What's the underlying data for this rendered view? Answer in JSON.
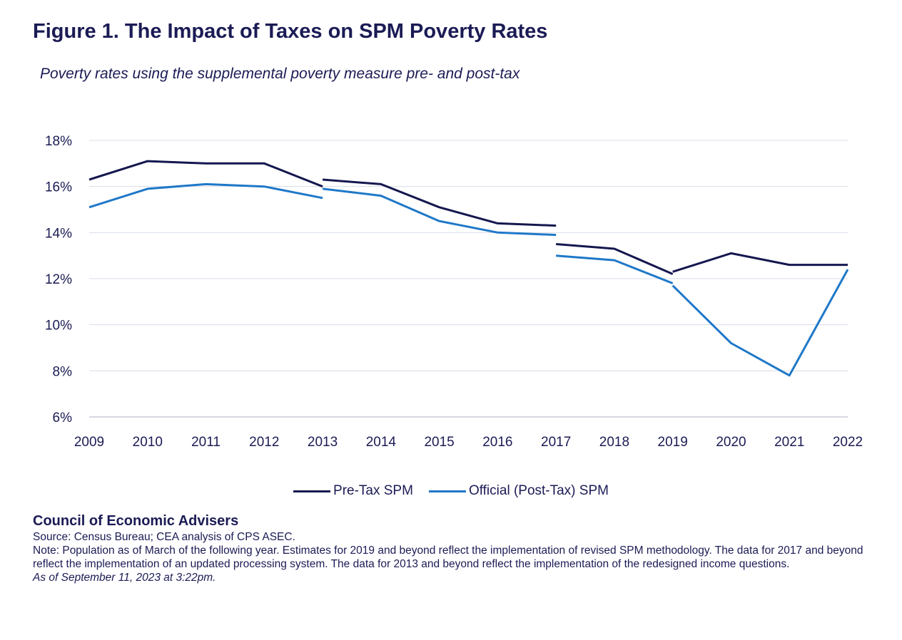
{
  "chart_data": {
    "type": "line",
    "title": "Figure 1. The Impact of Taxes on SPM Poverty Rates",
    "subtitle": "Poverty rates using the supplemental poverty measure pre- and post-tax",
    "xlabel": "",
    "ylabel": "",
    "categories": [
      "2009",
      "2010",
      "2011",
      "2012",
      "2013",
      "2014",
      "2015",
      "2016",
      "2017",
      "2018",
      "2019",
      "2020",
      "2021",
      "2022"
    ],
    "ylim": [
      6,
      18
    ],
    "yticks": [
      6,
      8,
      10,
      12,
      14,
      16,
      18
    ],
    "ytick_labels": [
      "6%",
      "8%",
      "10%",
      "12%",
      "14%",
      "16%",
      "18%"
    ],
    "grid": true,
    "legend_position": "bottom-center",
    "series": [
      {
        "name": "Pre-Tax SPM",
        "color": "#15174f",
        "segments": [
          [
            [
              "2009",
              16.3
            ],
            [
              "2010",
              17.1
            ],
            [
              "2011",
              17.0
            ],
            [
              "2012",
              17.0
            ],
            [
              "2013",
              16.0
            ]
          ],
          [
            [
              "2013",
              16.3
            ],
            [
              "2014",
              16.1
            ],
            [
              "2015",
              15.1
            ],
            [
              "2016",
              14.4
            ],
            [
              "2017",
              14.3
            ]
          ],
          [
            [
              "2017",
              13.5
            ],
            [
              "2018",
              13.3
            ],
            [
              "2019",
              12.2
            ]
          ],
          [
            [
              "2019",
              12.3
            ],
            [
              "2020",
              13.1
            ],
            [
              "2021",
              12.6
            ],
            [
              "2022",
              12.6
            ]
          ]
        ]
      },
      {
        "name": "Official (Post-Tax) SPM",
        "color": "#1f78c8",
        "segments": [
          [
            [
              "2009",
              15.1
            ],
            [
              "2010",
              15.9
            ],
            [
              "2011",
              16.1
            ],
            [
              "2012",
              16.0
            ],
            [
              "2013",
              15.5
            ]
          ],
          [
            [
              "2013",
              15.9
            ],
            [
              "2014",
              15.6
            ],
            [
              "2015",
              14.5
            ],
            [
              "2016",
              14.0
            ],
            [
              "2017",
              13.9
            ]
          ],
          [
            [
              "2017",
              13.0
            ],
            [
              "2018",
              12.8
            ],
            [
              "2019",
              11.8
            ]
          ],
          [
            [
              "2019",
              11.7
            ],
            [
              "2020",
              9.2
            ],
            [
              "2021",
              7.8
            ],
            [
              "2022",
              12.4
            ]
          ]
        ]
      }
    ]
  },
  "legend": {
    "pre_tax_label": "Pre-Tax SPM",
    "post_tax_label": "Official (Post-Tax) SPM"
  },
  "footer": {
    "organization": "Council of Economic Advisers",
    "source": "Source: Census Bureau; CEA analysis of CPS ASEC.",
    "note": "Note: Population as of March of the following year. Estimates for 2019 and beyond reflect the implementation of revised SPM methodology. The data for 2017 and beyond reflect the implementation of an updated processing system. The data for 2013 and beyond reflect the implementation of the redesigned income questions.",
    "as_of": "As of September 11, 2023 at 3:22pm."
  },
  "colors": {
    "pre_tax": "#15174f",
    "post_tax": "#1f78c8",
    "grid": "#d9dde8",
    "text": "#1b1b55"
  }
}
